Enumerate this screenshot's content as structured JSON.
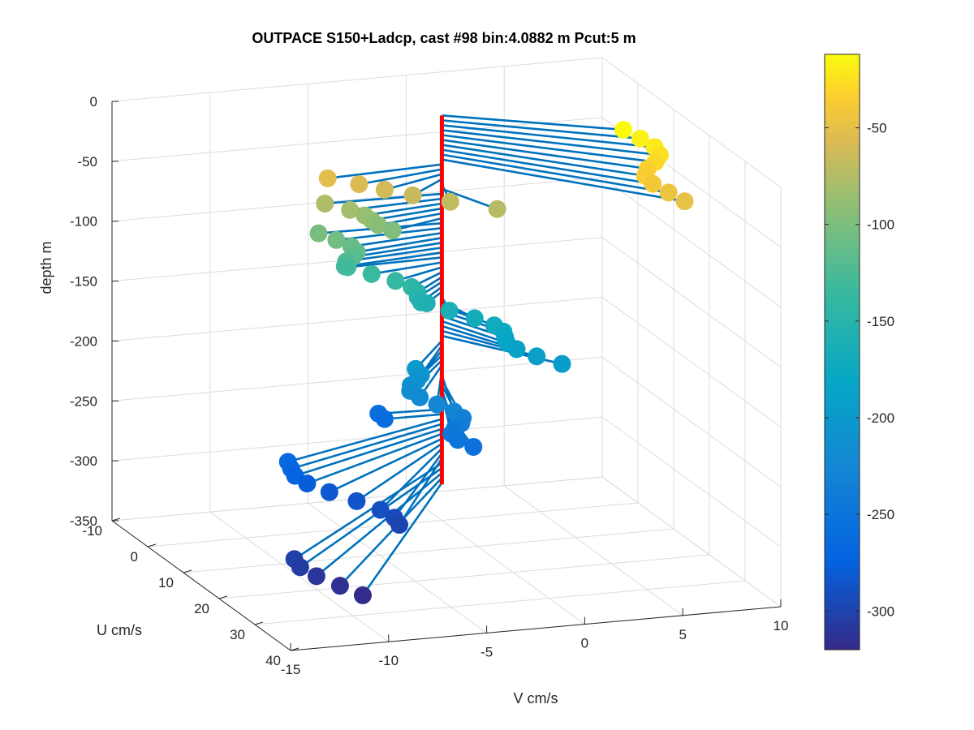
{
  "chart_data": {
    "type": "3d-line-scatter",
    "title": "OUTPACE S150+Ladcp, cast #98 bin:4.0882 m  Pcut:5 m",
    "xlabel": "V cm/s",
    "ylabel": "U cm/s",
    "zlabel": "depth m",
    "xlim": [
      -15,
      10
    ],
    "ylim": [
      -10,
      40
    ],
    "zlim": [
      -350,
      0
    ],
    "x_ticks": [
      "-15",
      "-10",
      "-5",
      "0",
      "5",
      "10"
    ],
    "y_ticks": [
      "-10",
      "0",
      "10",
      "20",
      "30",
      "40"
    ],
    "z_ticks": [
      "0",
      "-50",
      "-100",
      "-150",
      "-200",
      "-250",
      "-300",
      "-350"
    ],
    "grid": true,
    "colorbar": {
      "colormap": "parula",
      "range": [
        -320,
        -12
      ],
      "ticks": [
        "-50",
        "-100",
        "-150",
        "-200",
        "-250",
        "-300"
      ],
      "tick_values": [
        -50,
        -100,
        -150,
        -200,
        -250,
        -300
      ]
    },
    "profile_line_color": "#ff0000",
    "vector_color": "#0072bd",
    "profile": {
      "depth_top": -12,
      "depth_bottom": -320,
      "depth_step": 4.0882,
      "series": [
        {
          "depth_from": -12,
          "depth_to": -52,
          "V": [
            7.7,
            8.0
          ],
          "U": [
            11,
            22
          ]
        },
        {
          "depth_from": -52,
          "depth_to": -76,
          "V": [
            -7,
            2.5
          ],
          "U": [
            0,
            10
          ]
        },
        {
          "depth_from": -76,
          "depth_to": -100,
          "V": [
            -6.5,
            -2
          ],
          "U": [
            -1,
            4
          ]
        },
        {
          "depth_from": -100,
          "depth_to": -130,
          "V": [
            -6,
            -4.5
          ],
          "U": [
            0,
            3
          ]
        },
        {
          "depth_from": -130,
          "depth_to": -158,
          "V": [
            -4.5,
            -1
          ],
          "U": [
            1,
            6
          ]
        },
        {
          "depth_from": -158,
          "depth_to": -200,
          "V": [
            -1,
            4
          ],
          "U": [
            4,
            14
          ]
        },
        {
          "depth_from": -200,
          "depth_to": -255,
          "V": [
            -3.5,
            -1
          ],
          "U": [
            8,
            16
          ]
        },
        {
          "depth_from": -255,
          "depth_to": -262,
          "V": [
            -3.5,
            -3.5
          ],
          "U": [
            -1,
            -1
          ]
        },
        {
          "depth_from": -262,
          "depth_to": -300,
          "V": [
            -10.5,
            -6
          ],
          "U": [
            8,
            22
          ]
        },
        {
          "depth_from": -300,
          "depth_to": -320,
          "V": [
            -12.5,
            -11
          ],
          "U": [
            28,
            36
          ]
        }
      ]
    }
  }
}
